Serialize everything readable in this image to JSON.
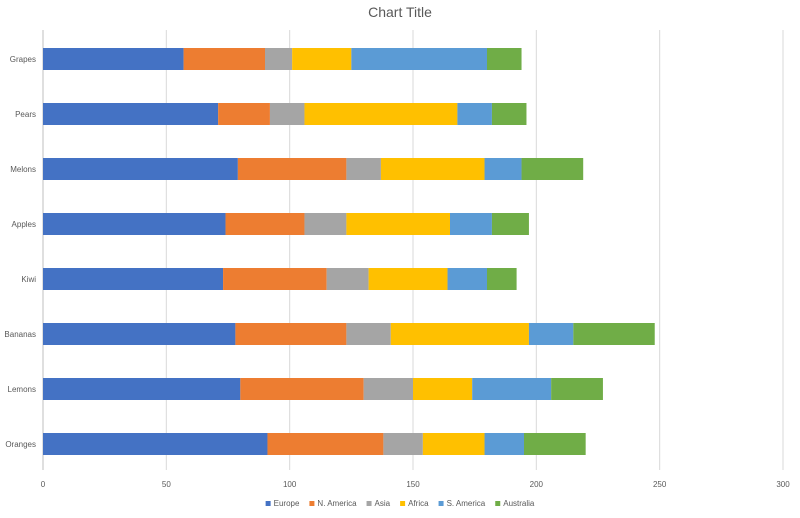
{
  "chart_data": {
    "type": "bar",
    "orientation": "horizontal",
    "stacked": true,
    "title": "Chart Title",
    "categories": [
      "Grapes",
      "Pears",
      "Melons",
      "Apples",
      "Kiwi",
      "Bananas",
      "Lemons",
      "Oranges"
    ],
    "series": [
      {
        "name": "Europe",
        "color": "#4472C4",
        "values": [
          57,
          71,
          79,
          74,
          73,
          78,
          80,
          91
        ]
      },
      {
        "name": "N. America",
        "color": "#ED7D31",
        "values": [
          33,
          21,
          44,
          32,
          42,
          45,
          50,
          47
        ]
      },
      {
        "name": "Asia",
        "color": "#A5A5A5",
        "values": [
          11,
          14,
          14,
          17,
          17,
          18,
          20,
          16
        ]
      },
      {
        "name": "Africa",
        "color": "#FFC000",
        "values": [
          24,
          62,
          42,
          42,
          32,
          56,
          24,
          25
        ]
      },
      {
        "name": "S. America",
        "color": "#5B9BD5",
        "values": [
          55,
          14,
          15,
          17,
          16,
          18,
          32,
          16
        ]
      },
      {
        "name": "Australia",
        "color": "#70AD47",
        "values": [
          14,
          14,
          25,
          15,
          12,
          33,
          21,
          25
        ]
      }
    ],
    "xlim": [
      0,
      300
    ],
    "xticks": [
      "0",
      "50",
      "100",
      "150",
      "200",
      "250",
      "300"
    ],
    "grid": true,
    "legend_position": "bottom"
  }
}
